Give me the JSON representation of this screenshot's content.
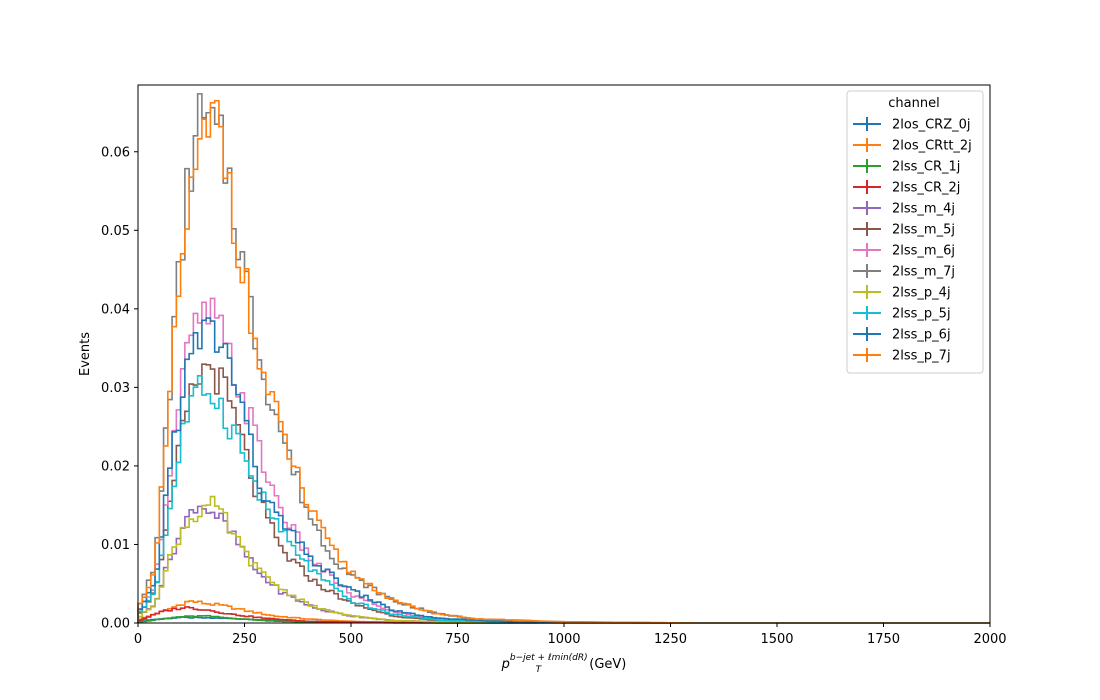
{
  "chart_data": {
    "type": "line",
    "style": "step histogram",
    "title": "",
    "xlabel_base": "p",
    "xlabel_sub": "T",
    "xlabel_sup": "b−jet + ℓmin(dR)",
    "xlabel_suffix": " (GeV)",
    "ylabel": "Events",
    "xlim": [
      0,
      2000
    ],
    "ylim": [
      0,
      0.0685
    ],
    "grid": false,
    "legend_placement": "upper right",
    "legend_title": "channel",
    "x_ticks": [
      0,
      250,
      500,
      750,
      1000,
      1250,
      1500,
      1750,
      2000
    ],
    "x_tick_labels": [
      "0",
      "250",
      "500",
      "750",
      "1000",
      "1250",
      "1500",
      "1750",
      "2000"
    ],
    "y_ticks": [
      0.0,
      0.01,
      0.02,
      0.03,
      0.04,
      0.05,
      0.06
    ],
    "y_tick_labels": [
      "0.00",
      "0.01",
      "0.02",
      "0.03",
      "0.04",
      "0.05",
      "0.06"
    ],
    "series": [
      {
        "name": "2los_CRZ_0j",
        "color": "#1f77b4",
        "points": [
          [
            0,
            0.0003
          ],
          [
            100,
            0.0007
          ],
          [
            200,
            0.0006
          ],
          [
            300,
            0.0004
          ],
          [
            400,
            0.0002
          ],
          [
            600,
            0.0001
          ],
          [
            800,
            4e-05
          ],
          [
            1000,
            1e-05
          ],
          [
            2000,
            0
          ]
        ]
      },
      {
        "name": "2los_CRtt_2j",
        "color": "#ff7f0e",
        "points": [
          [
            0,
            0.0004
          ],
          [
            60,
            0.0015
          ],
          [
            120,
            0.0028
          ],
          [
            160,
            0.0025
          ],
          [
            200,
            0.0022
          ],
          [
            260,
            0.0015
          ],
          [
            320,
            0.0009
          ],
          [
            400,
            0.0005
          ],
          [
            500,
            0.0002
          ],
          [
            700,
            5e-05
          ],
          [
            1000,
            0
          ]
        ]
      },
      {
        "name": "2lss_CR_1j",
        "color": "#2ca02c",
        "points": [
          [
            0,
            0.0001
          ],
          [
            100,
            0.0008
          ],
          [
            160,
            0.0009
          ],
          [
            220,
            0.0006
          ],
          [
            300,
            0.0003
          ],
          [
            400,
            0.0001
          ],
          [
            600,
            2e-05
          ],
          [
            800,
            0
          ]
        ]
      },
      {
        "name": "2lss_CR_2j",
        "color": "#d62728",
        "points": [
          [
            0,
            0.0003
          ],
          [
            60,
            0.0015
          ],
          [
            110,
            0.002
          ],
          [
            160,
            0.0017
          ],
          [
            220,
            0.0011
          ],
          [
            300,
            0.0006
          ],
          [
            400,
            0.0002
          ],
          [
            600,
            3e-05
          ],
          [
            800,
            0
          ]
        ]
      },
      {
        "name": "2lss_m_4j",
        "color": "#9467bd",
        "points": [
          [
            0,
            0.0006
          ],
          [
            40,
            0.0025
          ],
          [
            80,
            0.009
          ],
          [
            110,
            0.0125
          ],
          [
            135,
            0.0152
          ],
          [
            160,
            0.0148
          ],
          [
            190,
            0.0135
          ],
          [
            230,
            0.0105
          ],
          [
            280,
            0.0065
          ],
          [
            340,
            0.0038
          ],
          [
            420,
            0.0018
          ],
          [
            500,
            0.0009
          ],
          [
            600,
            0.0003
          ],
          [
            800,
            5e-05
          ],
          [
            1000,
            0
          ]
        ]
      },
      {
        "name": "2lss_m_5j",
        "color": "#8c564b",
        "points": [
          [
            0,
            0.001
          ],
          [
            40,
            0.004
          ],
          [
            80,
            0.016
          ],
          [
            110,
            0.026
          ],
          [
            140,
            0.031
          ],
          [
            170,
            0.033
          ],
          [
            200,
            0.03
          ],
          [
            240,
            0.024
          ],
          [
            280,
            0.016
          ],
          [
            340,
            0.009
          ],
          [
            420,
            0.005
          ],
          [
            500,
            0.0025
          ],
          [
            600,
            0.0009
          ],
          [
            700,
            0.0003
          ],
          [
            900,
            5e-05
          ],
          [
            1100,
            0
          ]
        ]
      },
      {
        "name": "2lss_m_6j",
        "color": "#e377c2",
        "points": [
          [
            0,
            0.0012
          ],
          [
            40,
            0.005
          ],
          [
            80,
            0.022
          ],
          [
            110,
            0.033
          ],
          [
            140,
            0.038
          ],
          [
            170,
            0.0395
          ],
          [
            200,
            0.036
          ],
          [
            230,
            0.031
          ],
          [
            270,
            0.025
          ],
          [
            300,
            0.019
          ],
          [
            350,
            0.013
          ],
          [
            400,
            0.0085
          ],
          [
            500,
            0.0036
          ],
          [
            600,
            0.0014
          ],
          [
            700,
            0.0005
          ],
          [
            900,
            0.0001
          ],
          [
            1200,
            0
          ]
        ]
      },
      {
        "name": "2lss_m_7j",
        "color": "#7f7f7f",
        "points": [
          [
            0,
            0.002
          ],
          [
            40,
            0.007
          ],
          [
            80,
            0.034
          ],
          [
            110,
            0.052
          ],
          [
            130,
            0.061
          ],
          [
            150,
            0.064
          ],
          [
            180,
            0.062
          ],
          [
            210,
            0.058
          ],
          [
            240,
            0.048
          ],
          [
            270,
            0.038
          ],
          [
            300,
            0.031
          ],
          [
            350,
            0.022
          ],
          [
            400,
            0.014
          ],
          [
            450,
            0.009
          ],
          [
            500,
            0.006
          ],
          [
            600,
            0.0028
          ],
          [
            700,
            0.0012
          ],
          [
            800,
            0.0005
          ],
          [
            1000,
            0.00015
          ],
          [
            1300,
            0
          ]
        ]
      },
      {
        "name": "2lss_p_4j",
        "color": "#bcbd22",
        "points": [
          [
            0,
            0.0006
          ],
          [
            40,
            0.0025
          ],
          [
            80,
            0.009
          ],
          [
            110,
            0.0125
          ],
          [
            140,
            0.014
          ],
          [
            170,
            0.0152
          ],
          [
            200,
            0.0135
          ],
          [
            240,
            0.0098
          ],
          [
            280,
            0.0068
          ],
          [
            340,
            0.0042
          ],
          [
            420,
            0.0019
          ],
          [
            500,
            0.0009
          ],
          [
            600,
            0.0003
          ],
          [
            800,
            5e-05
          ],
          [
            1000,
            0
          ]
        ]
      },
      {
        "name": "2lss_p_5j",
        "color": "#17becf",
        "points": [
          [
            0,
            0.001
          ],
          [
            40,
            0.004
          ],
          [
            80,
            0.016
          ],
          [
            110,
            0.026
          ],
          [
            140,
            0.029
          ],
          [
            170,
            0.0302
          ],
          [
            200,
            0.027
          ],
          [
            230,
            0.024
          ],
          [
            260,
            0.0195
          ],
          [
            300,
            0.015
          ],
          [
            350,
            0.0105
          ],
          [
            400,
            0.0072
          ],
          [
            450,
            0.0048
          ],
          [
            500,
            0.0028
          ],
          [
            600,
            0.0011
          ],
          [
            700,
            0.0004
          ],
          [
            900,
            5e-05
          ],
          [
            1100,
            0
          ]
        ]
      },
      {
        "name": "2lss_p_6j",
        "color": "#1f77b4",
        "points": [
          [
            0,
            0.0012
          ],
          [
            40,
            0.005
          ],
          [
            80,
            0.022
          ],
          [
            110,
            0.031
          ],
          [
            140,
            0.036
          ],
          [
            170,
            0.0375
          ],
          [
            200,
            0.035
          ],
          [
            240,
            0.029
          ],
          [
            270,
            0.021
          ],
          [
            300,
            0.0155
          ],
          [
            350,
            0.012
          ],
          [
            400,
            0.0085
          ],
          [
            450,
            0.0062
          ],
          [
            500,
            0.0042
          ],
          [
            600,
            0.0016
          ],
          [
            700,
            0.0006
          ],
          [
            900,
            0.0001
          ],
          [
            1200,
            0
          ]
        ]
      },
      {
        "name": "2lss_p_7j",
        "color": "#ff7f0e",
        "points": [
          [
            0,
            0.0018
          ],
          [
            40,
            0.0065
          ],
          [
            80,
            0.032
          ],
          [
            110,
            0.05
          ],
          [
            140,
            0.058
          ],
          [
            170,
            0.063
          ],
          [
            190,
            0.064
          ],
          [
            210,
            0.058
          ],
          [
            240,
            0.047
          ],
          [
            270,
            0.037
          ],
          [
            300,
            0.03
          ],
          [
            350,
            0.0225
          ],
          [
            400,
            0.0148
          ],
          [
            450,
            0.0098
          ],
          [
            500,
            0.0065
          ],
          [
            600,
            0.0028
          ],
          [
            700,
            0.0012
          ],
          [
            800,
            0.0005
          ],
          [
            1000,
            0.00015
          ],
          [
            1300,
            0
          ]
        ]
      }
    ]
  }
}
